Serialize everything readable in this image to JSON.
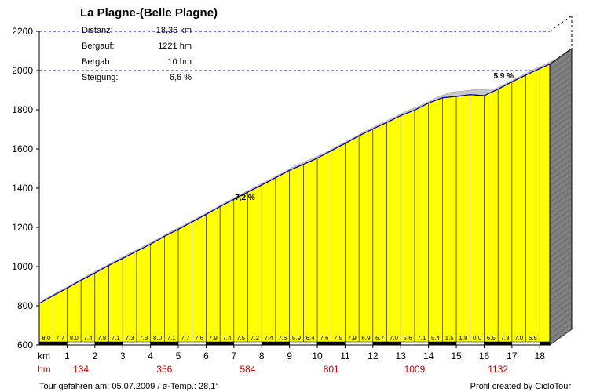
{
  "chart_data": {
    "type": "area",
    "title": "La Plagne-(Belle Plagne)",
    "ylim": [
      600,
      2200
    ],
    "y_ticks": [
      600,
      800,
      1000,
      1200,
      1400,
      1600,
      1800,
      2000,
      2200
    ],
    "xlim": [
      0,
      18.36
    ],
    "x_unit": "km",
    "x_ticks": [
      1,
      2,
      3,
      4,
      5,
      6,
      7,
      8,
      9,
      10,
      11,
      12,
      13,
      14,
      15,
      16,
      17,
      18
    ],
    "hm_unit": "hm",
    "hm_labels": [
      {
        "x": 1.5,
        "value": "134"
      },
      {
        "x": 4.5,
        "value": "356"
      },
      {
        "x": 7.5,
        "value": "584"
      },
      {
        "x": 10.5,
        "value": "801"
      },
      {
        "x": 13.5,
        "value": "1009"
      },
      {
        "x": 16.5,
        "value": "1132"
      }
    ],
    "stats": [
      {
        "label": "Distanz:",
        "value": "18,36 km"
      },
      {
        "label": "Bergauf:",
        "value": "1221 hm"
      },
      {
        "label": "Bergab:",
        "value": "10 hm"
      },
      {
        "label": "Steigung:",
        "value": "6,6 %"
      }
    ],
    "segment_gradients": [
      "8.0",
      "7.7",
      "8.0",
      "7.4",
      "7.8",
      "7.1",
      "7.3",
      "7.3",
      "8.0",
      "7.1",
      "7.7",
      "7.6",
      "7.9",
      "7.4",
      "7.5",
      "7.2",
      "7.4",
      "7.6",
      "5.9",
      "6.4",
      "7.6",
      "7.5",
      "7.9",
      "6.9",
      "6.7",
      "7.0",
      "5.6",
      "7.1",
      "5.4",
      "1.5",
      "1.8",
      "0.0",
      "6.5",
      "7.3",
      "7.0",
      "6.5"
    ],
    "profile_points": [
      [
        0,
        812
      ],
      [
        0.5,
        852
      ],
      [
        1,
        890
      ],
      [
        1.5,
        930
      ],
      [
        2,
        967
      ],
      [
        2.5,
        1006
      ],
      [
        3,
        1042
      ],
      [
        3.5,
        1078
      ],
      [
        4,
        1114
      ],
      [
        4.5,
        1154
      ],
      [
        5,
        1190
      ],
      [
        5.5,
        1228
      ],
      [
        6,
        1266
      ],
      [
        6.5,
        1306
      ],
      [
        7,
        1343
      ],
      [
        7.5,
        1380
      ],
      [
        8,
        1416
      ],
      [
        8.5,
        1453
      ],
      [
        9,
        1491
      ],
      [
        9.5,
        1521
      ],
      [
        10,
        1553
      ],
      [
        10.5,
        1591
      ],
      [
        11,
        1628
      ],
      [
        11.5,
        1667
      ],
      [
        12,
        1702
      ],
      [
        12.5,
        1735
      ],
      [
        13,
        1770
      ],
      [
        13.5,
        1798
      ],
      [
        14,
        1834
      ],
      [
        14.5,
        1861
      ],
      [
        15,
        1868
      ],
      [
        15.5,
        1877
      ],
      [
        16,
        1872
      ],
      [
        16.5,
        1905
      ],
      [
        17,
        1942
      ],
      [
        17.5,
        1977
      ],
      [
        18,
        2010
      ],
      [
        18.36,
        2033
      ]
    ],
    "annotations": [
      {
        "x": 7.4,
        "y": 1340,
        "text": "7,2 %"
      },
      {
        "x": 16.7,
        "y": 1960,
        "text": "5,9 %"
      }
    ],
    "reference_lines": [
      2000,
      2200
    ],
    "fill_color": "#ffff00",
    "side_color": "#808080",
    "edge_color": "#0000cc",
    "gridline_color": "#0000cc",
    "hm_color": "#cc0000"
  },
  "footer": {
    "left": "Tour gefahren am: 05.07.2009  /  ø-Temp.: 28,1°",
    "right": "Profil created by CicloTour"
  }
}
